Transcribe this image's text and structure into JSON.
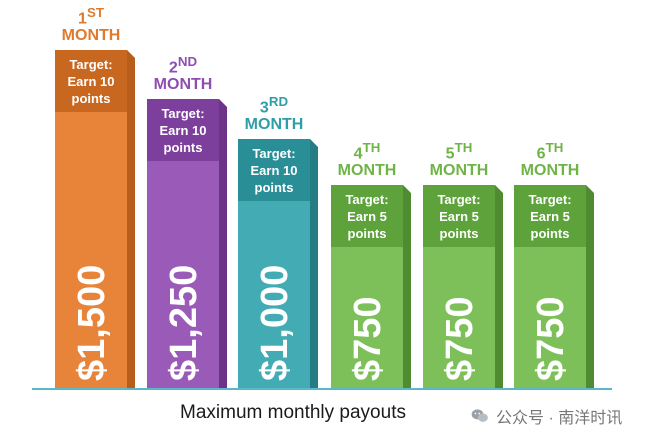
{
  "chart_data": {
    "type": "bar",
    "xlabel": "Maximum monthly payouts",
    "categories": [
      "1ST MONTH",
      "2ND MONTH",
      "3RD MONTH",
      "4TH MONTH",
      "5TH MONTH",
      "6TH MONTH"
    ],
    "values": [
      1500,
      1250,
      1000,
      750,
      750,
      750
    ],
    "bars": [
      {
        "num": "1",
        "suffix": "ST",
        "word": "MONTH",
        "target": [
          "Target:",
          "Earn 10",
          "points"
        ],
        "payout": "$1,500",
        "color": "#e8843a",
        "band": "#c86820",
        "side": "#b85d1a",
        "label_color": "#e07a2e"
      },
      {
        "num": "2",
        "suffix": "ND",
        "word": "MONTH",
        "target": [
          "Target:",
          "Earn 10",
          "points"
        ],
        "payout": "$1,250",
        "color": "#9a5bb8",
        "band": "#7d3f9c",
        "side": "#6d3389",
        "label_color": "#8e4fb0"
      },
      {
        "num": "3",
        "suffix": "RD",
        "word": "MONTH",
        "target": [
          "Target:",
          "Earn 10",
          "points"
        ],
        "payout": "$1,000",
        "color": "#42abb3",
        "band": "#2a8e97",
        "side": "#247d85",
        "label_color": "#2f9ea6"
      },
      {
        "num": "4",
        "suffix": "TH",
        "word": "MONTH",
        "target": [
          "Target:",
          "Earn 5",
          "points"
        ],
        "payout": "$750",
        "color": "#7dc05a",
        "band": "#5da23b",
        "side": "#4f8c31",
        "label_color": "#6fb447"
      },
      {
        "num": "5",
        "suffix": "TH",
        "word": "MONTH",
        "target": [
          "Target:",
          "Earn 5",
          "points"
        ],
        "payout": "$750",
        "color": "#7dc05a",
        "band": "#5da23b",
        "side": "#4f8c31",
        "label_color": "#6fb447"
      },
      {
        "num": "6",
        "suffix": "TH",
        "word": "MONTH",
        "target": [
          "Target:",
          "Earn 5",
          "points"
        ],
        "payout": "$750",
        "color": "#7dc05a",
        "band": "#5da23b",
        "side": "#4f8c31",
        "label_color": "#6fb447"
      }
    ],
    "baseline_color": "#5bb8c9"
  },
  "watermark": {
    "text": "公众号 · 南洋时讯",
    "icon": "wechat-icon"
  }
}
